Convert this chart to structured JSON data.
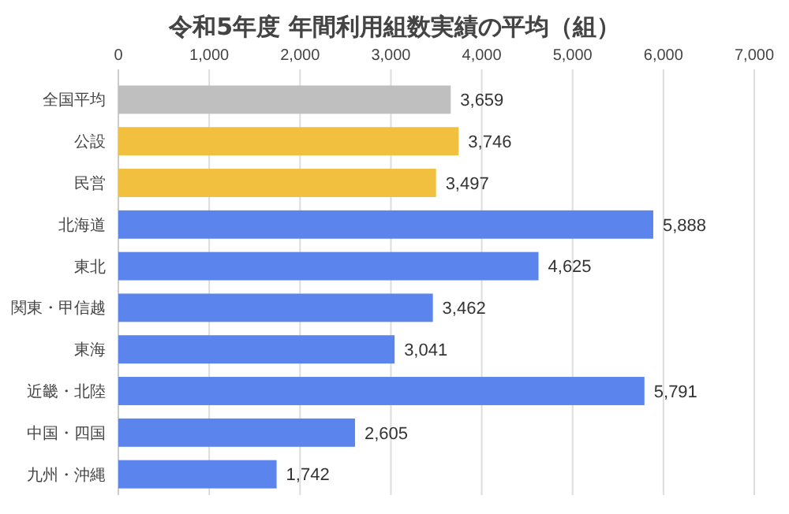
{
  "chart_data": {
    "type": "bar",
    "orientation": "horizontal",
    "title": "令和5年度 年間利用組数実績の平均（組）",
    "categories": [
      "全国平均",
      "公設",
      "民営",
      "北海道",
      "東北",
      "関東・甲信越",
      "東海",
      "近畿・北陸",
      "中国・四国",
      "九州・沖縄"
    ],
    "values": [
      3659,
      3746,
      3497,
      5888,
      4625,
      3462,
      3041,
      5791,
      2605,
      1742
    ],
    "colors": [
      "#bfbfbf",
      "#f1c03f",
      "#f1c03f",
      "#5b85ec",
      "#5b85ec",
      "#5b85ec",
      "#5b85ec",
      "#5b85ec",
      "#5b85ec",
      "#5b85ec"
    ],
    "xlim": [
      0,
      7000
    ],
    "xticks": [
      0,
      {
        "value": 1000,
        "label": "1,000"
      },
      {
        "value": 2000,
        "label": "2,000"
      },
      {
        "value": 3000,
        "label": "3,000"
      },
      {
        "value": 4000,
        "label": "4,000"
      },
      {
        "value": 5000,
        "label": "5,000"
      },
      {
        "value": 6000,
        "label": "6,000"
      },
      {
        "value": 7000,
        "label": "7,000"
      }
    ],
    "value_labels": [
      "3,659",
      "3,746",
      "3,497",
      "5,888",
      "4,625",
      "3,462",
      "3,041",
      "5,791",
      "2,605",
      "1,742"
    ],
    "grid": "x"
  }
}
